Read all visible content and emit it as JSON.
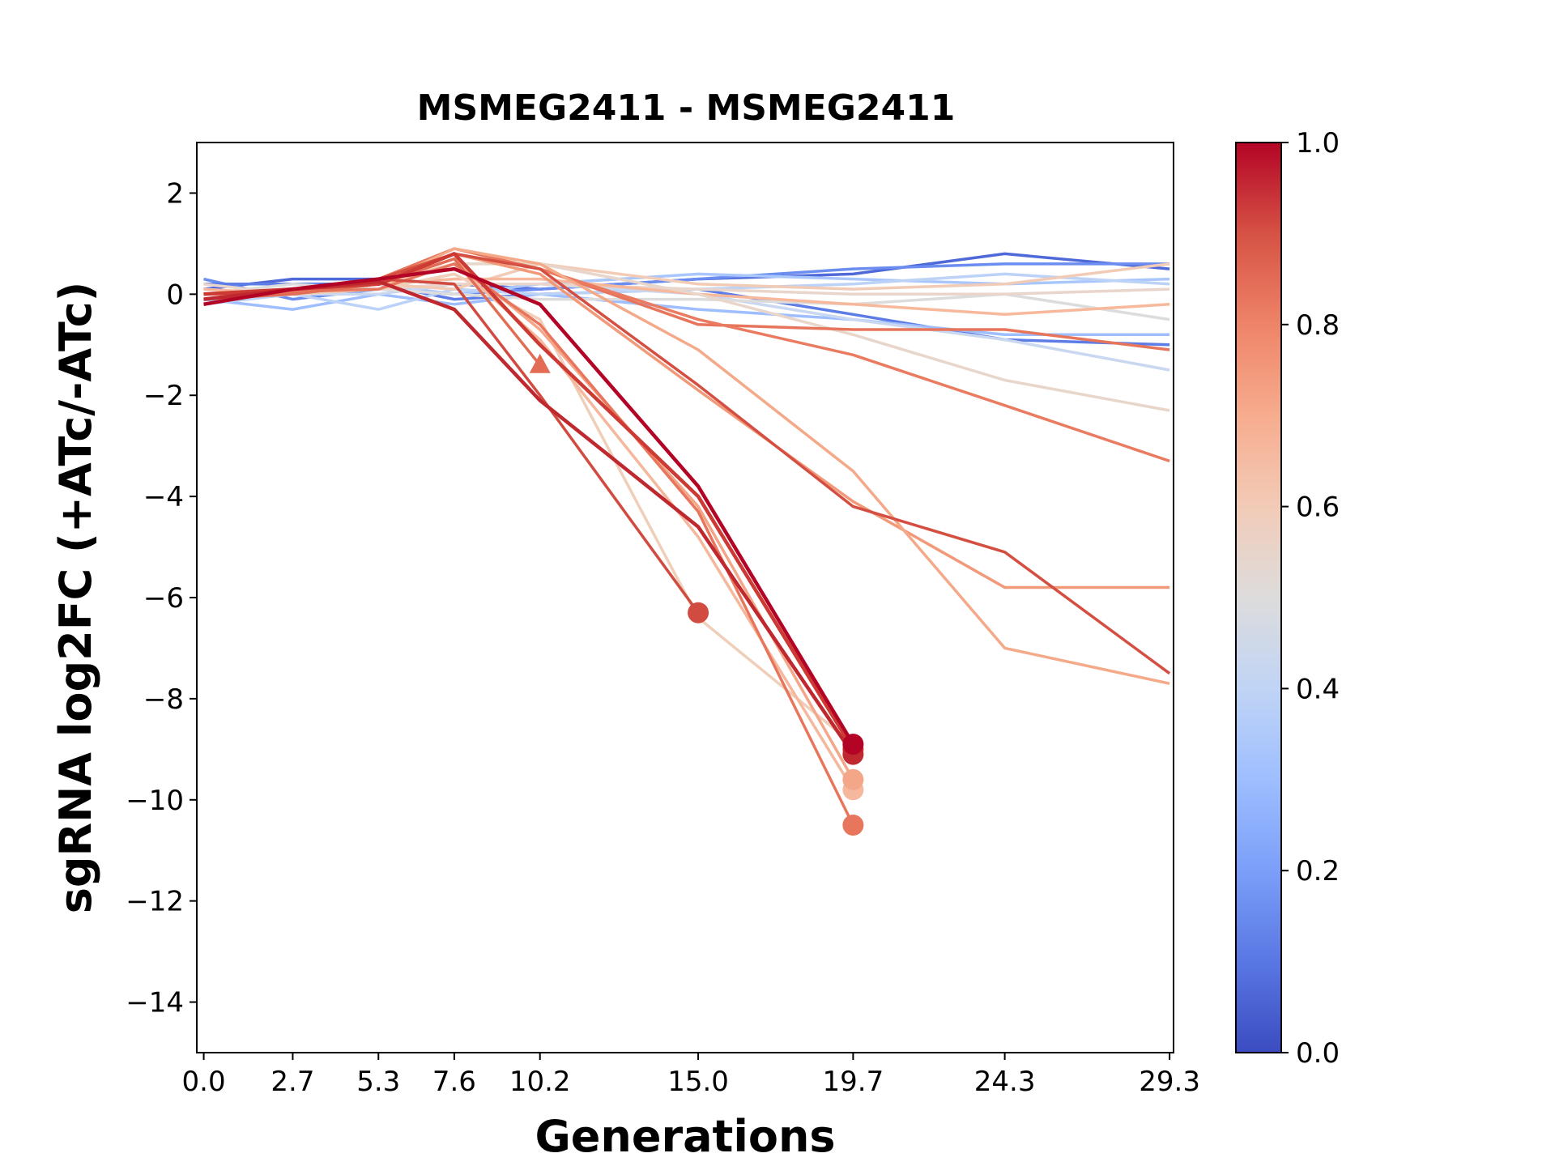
{
  "chart_data": {
    "type": "line",
    "title": "MSMEG2411 - MSMEG2411",
    "x_label": "Generations",
    "y_label": "sgRNA log2FC (+ATc/-ATc)",
    "x": [
      0,
      2.7,
      5.3,
      7.6,
      10.2,
      15.0,
      19.7,
      24.3,
      29.3
    ],
    "xlim": [
      -0.21,
      29.42
    ],
    "xticks": [
      {
        "value": 0,
        "label": "0.0"
      },
      2.7,
      5.3,
      7.6,
      10.2,
      {
        "value": 15,
        "label": "15.0"
      },
      19.7,
      24.3,
      29.3
    ],
    "ylim": [
      -15,
      3
    ],
    "yticks": [
      2,
      0,
      {
        "value": -2,
        "label": "−2"
      },
      {
        "value": -4,
        "label": "−4"
      },
      {
        "value": -6,
        "label": "−6"
      },
      {
        "value": -8,
        "label": "−8"
      },
      {
        "value": -10,
        "label": "−10"
      },
      {
        "value": -12,
        "label": "−12"
      },
      {
        "value": -14,
        "label": "−14"
      }
    ],
    "colorbar": {
      "lim": [
        0,
        1
      ],
      "ticks": [
        {
          "value": 0,
          "label": "0.0"
        },
        0.2,
        0.4,
        0.6,
        0.8,
        {
          "value": 1,
          "label": "1.0"
        }
      ],
      "colors": [
        "#3b4cc0",
        "#5977e3",
        "#7b9ff9",
        "#9ebeff",
        "#c0d4f5",
        "#dddcdc",
        "#f2cbb7",
        "#f7ac8e",
        "#ee8468",
        "#d65244",
        "#b40426"
      ]
    },
    "series": [
      {
        "color": "#4f69d9",
        "values": [
          0.1,
          0.3,
          0.3,
          0.2,
          0.1,
          0.3,
          0.4,
          0.8,
          0.5
        ]
      },
      {
        "color": "#6b8df0",
        "values": [
          0.3,
          -0.1,
          0.1,
          0.0,
          0.1,
          0.3,
          0.5,
          0.6,
          0.6
        ]
      },
      {
        "color": "#5d7ce6",
        "values": [
          0.2,
          0.2,
          0.2,
          -0.1,
          0,
          0.1,
          -0.4,
          -0.9,
          -1.0
        ]
      },
      {
        "color": "#9ebeff",
        "values": [
          -0.1,
          -0.3,
          0,
          -0.2,
          0,
          -0.3,
          -0.5,
          -0.8,
          -0.8
        ]
      },
      {
        "color": "#aac7fd",
        "values": [
          0,
          0.1,
          0.2,
          0,
          0.2,
          0.4,
          0.3,
          0.2,
          0.3
        ]
      },
      {
        "color": "#bcd2f7",
        "values": [
          -0.2,
          0,
          -0.3,
          0.1,
          0,
          0.1,
          0.2,
          0.4,
          0.2
        ]
      },
      {
        "color": "#c9d7f0",
        "values": [
          0,
          0,
          0,
          0.2,
          0.2,
          0,
          -0.5,
          -0.9,
          -1.5
        ]
      },
      {
        "color": "#dddcdc",
        "values": [
          0,
          0.2,
          0.1,
          0,
          -0.1,
          -0.1,
          -0.2,
          0,
          -0.5
        ]
      },
      {
        "color": "#e9d5cb",
        "values": [
          0.2,
          0,
          0.1,
          0.2,
          0.2,
          0.1,
          0,
          0,
          0.1
        ]
      },
      {
        "color": "#f2cbb7",
        "values": [
          0,
          0,
          0.2,
          0.1,
          0.6,
          0.2,
          0.1,
          0.2,
          0.6
        ]
      },
      {
        "color": "#f7b89c",
        "values": [
          0.1,
          0,
          0.2,
          0.3,
          0.3,
          0,
          -0.2,
          -0.4,
          -0.2
        ]
      },
      {
        "color": "#e8d6cb",
        "values": [
          0,
          0,
          0.2,
          0.6,
          0.6,
          0.0,
          -0.8,
          -1.7,
          -2.3
        ]
      },
      {
        "color": "#e7755b",
        "values": [
          0,
          0.1,
          0.3,
          0.9,
          0.5,
          -0.6,
          -0.7,
          -0.7,
          -1.1
        ]
      },
      {
        "color": "#ea7b60",
        "values": [
          0,
          0.1,
          0.2,
          0.8,
          0.5,
          -0.5,
          -1.2,
          -2.2,
          -3.3
        ]
      },
      {
        "color": "#f29979",
        "values": [
          0,
          0,
          0.2,
          0.8,
          0.4,
          -1.9,
          -4.1,
          -5.8,
          -5.8
        ]
      },
      {
        "color": "#f4a989",
        "values": [
          0,
          0,
          0.2,
          0.9,
          0.6,
          -1.1,
          -3.5,
          -7.0,
          -7.7
        ]
      },
      {
        "color": "#d44e41",
        "values": [
          0,
          0.1,
          0.3,
          0.8,
          0.5,
          -1.8,
          -4.2,
          -5.1,
          -7.5
        ]
      },
      {
        "color": "#efcfb9",
        "values": [
          0,
          0,
          0.1,
          0.4,
          -0.5,
          -6.4,
          -8.9,
          null,
          null
        ],
        "marker": "o"
      },
      {
        "color": "#f5b89c",
        "values": [
          0,
          0.1,
          0.2,
          0.6,
          -0.9,
          -4.8,
          -9.8,
          null,
          null
        ],
        "marker": "o"
      },
      {
        "color": "#f4a688",
        "values": [
          0,
          0,
          0.2,
          0.7,
          -0.7,
          -4.2,
          -9.6,
          null,
          null
        ],
        "marker": "o"
      },
      {
        "color": "#e8765c",
        "values": [
          0,
          0.05,
          0.1,
          0.6,
          -0.6,
          -4.3,
          -10.5,
          null,
          null
        ],
        "marker": "o"
      },
      {
        "color": "#e36c55",
        "values": [
          -0.1,
          0,
          0.2,
          0.7,
          -1.4,
          null,
          null,
          null,
          null
        ],
        "marker": "^"
      },
      {
        "color": "#d24b40",
        "values": [
          0,
          0.1,
          0.3,
          0.2,
          -2.0,
          -6.3,
          null,
          null,
          null
        ],
        "marker": "o"
      },
      {
        "color": "#cc3a33",
        "values": [
          0,
          0.1,
          0.2,
          0.8,
          -1.0,
          -4.0,
          -9.0,
          null,
          null
        ],
        "marker": "o"
      },
      {
        "color": "#c0282f",
        "values": [
          -0.1,
          0.1,
          0.25,
          -0.3,
          -2.1,
          -4.6,
          -9.1,
          null,
          null
        ],
        "marker": "o"
      },
      {
        "color": "#b40426",
        "values": [
          -0.2,
          0.1,
          0.3,
          0.5,
          -0.2,
          -3.8,
          -8.9,
          null,
          null
        ],
        "marker": "o"
      }
    ]
  }
}
